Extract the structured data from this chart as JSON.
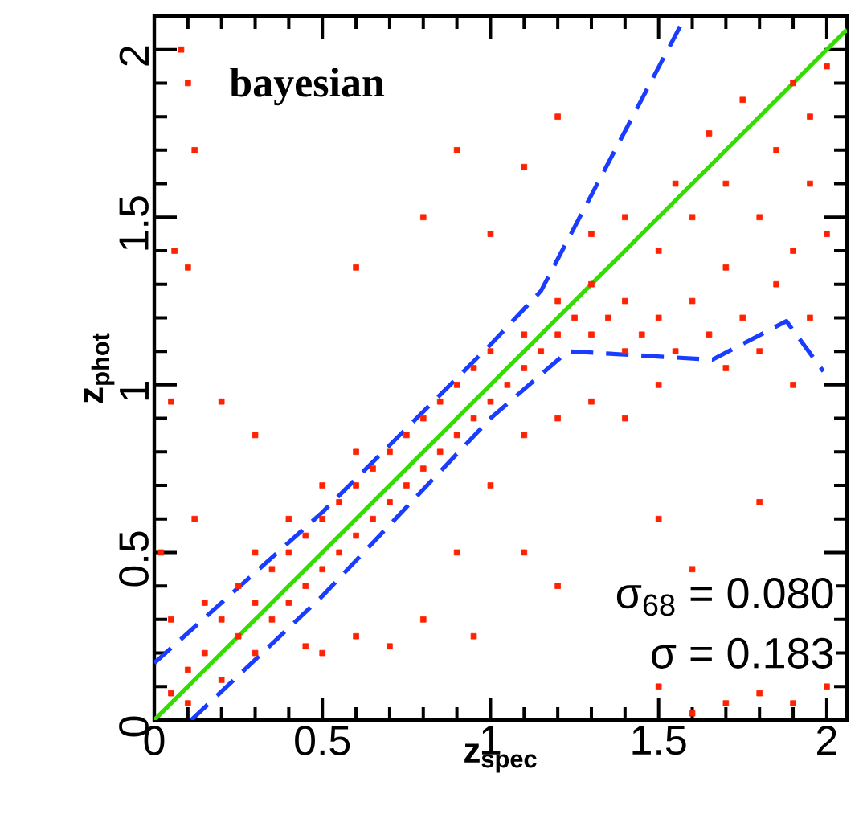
{
  "chart_data": {
    "type": "scatter",
    "xlabel": "z$_{spec}$",
    "ylabel": "z$_{phot}$",
    "annotations": [
      "bayesian",
      "σ$_{68}$ =  0.080",
      "σ    =  0.183"
    ],
    "xlim": [
      0,
      2.06
    ],
    "ylim": [
      0,
      2.1
    ],
    "xticks": [
      0,
      {
        "value": 0.1,
        "label": null
      },
      {
        "value": 0.2,
        "label": null
      },
      {
        "value": 0.3,
        "label": null
      },
      {
        "value": 0.4,
        "label": null
      },
      0.5,
      {
        "value": 0.6,
        "label": null
      },
      {
        "value": 0.7,
        "label": null
      },
      {
        "value": 0.8,
        "label": null
      },
      {
        "value": 0.9,
        "label": null
      },
      1,
      {
        "value": 1.1,
        "label": null
      },
      {
        "value": 1.2,
        "label": null
      },
      {
        "value": 1.3,
        "label": null
      },
      {
        "value": 1.4,
        "label": null
      },
      1.5,
      {
        "value": 1.6,
        "label": null
      },
      {
        "value": 1.7,
        "label": null
      },
      {
        "value": 1.8,
        "label": null
      },
      {
        "value": 1.9,
        "label": null
      },
      2
    ],
    "yticks": [
      0,
      {
        "value": 0.1,
        "label": null
      },
      {
        "value": 0.2,
        "label": null
      },
      {
        "value": 0.3,
        "label": null
      },
      {
        "value": 0.4,
        "label": null
      },
      0.5,
      {
        "value": 0.6,
        "label": null
      },
      {
        "value": 0.7,
        "label": null
      },
      {
        "value": 0.8,
        "label": null
      },
      {
        "value": 0.9,
        "label": null
      },
      1,
      {
        "value": 1.1,
        "label": null
      },
      {
        "value": 1.2,
        "label": null
      },
      {
        "value": 1.3,
        "label": null
      },
      {
        "value": 1.4,
        "label": null
      },
      1.5,
      {
        "value": 1.6,
        "label": null
      },
      {
        "value": 1.7,
        "label": null
      },
      {
        "value": 1.8,
        "label": null
      },
      {
        "value": 1.9,
        "label": null
      },
      2
    ],
    "series": [
      {
        "color": "#ff2200",
        "marker": "square",
        "x": [
          0.05,
          0.1,
          0.1,
          0.15,
          0.2,
          0.2,
          0.25,
          0.25,
          0.3,
          0.3,
          0.3,
          0.35,
          0.35,
          0.4,
          0.4,
          0.4,
          0.45,
          0.45,
          0.5,
          0.5,
          0.5,
          0.55,
          0.55,
          0.6,
          0.6,
          0.6,
          0.65,
          0.65,
          0.7,
          0.7,
          0.75,
          0.75,
          0.8,
          0.8,
          0.85,
          0.85,
          0.9,
          0.9,
          0.95,
          0.95,
          1.0,
          1.0,
          1.05,
          1.1,
          1.1,
          1.15,
          1.2,
          1.2,
          1.25,
          1.3,
          1.3,
          1.35,
          1.4,
          1.4,
          1.45,
          1.5,
          1.5,
          1.55,
          1.6,
          1.65,
          1.7,
          1.75,
          1.8,
          1.85,
          1.9,
          1.95,
          1.3,
          1.4,
          1.5,
          1.55,
          1.6,
          1.65,
          1.7,
          1.75,
          1.8,
          1.85,
          1.9,
          1.95,
          1.95,
          2.0,
          2.0,
          1.9,
          1.7,
          0.08,
          0.1,
          0.12,
          0.1,
          0.06,
          0.05,
          0.2,
          0.3,
          0.6,
          0.8,
          0.9,
          1.0,
          1.1,
          1.2,
          0.45,
          0.5,
          0.6,
          0.7,
          0.8,
          0.9,
          1.0,
          1.1,
          1.2,
          1.3,
          1.4,
          1.1,
          0.95,
          1.2,
          1.5,
          1.6,
          1.8,
          1.7,
          1.8,
          1.9,
          1.6,
          2.0,
          1.5,
          0.15,
          0.05,
          0.02,
          0.12
        ],
        "values": [
          0.08,
          0.05,
          0.15,
          0.2,
          0.12,
          0.3,
          0.25,
          0.4,
          0.2,
          0.35,
          0.5,
          0.3,
          0.45,
          0.35,
          0.5,
          0.6,
          0.4,
          0.55,
          0.45,
          0.6,
          0.7,
          0.5,
          0.65,
          0.55,
          0.7,
          0.8,
          0.6,
          0.75,
          0.65,
          0.8,
          0.7,
          0.85,
          0.75,
          0.9,
          0.8,
          0.95,
          0.85,
          1.0,
          0.9,
          1.05,
          0.95,
          1.1,
          1.0,
          1.05,
          1.15,
          1.1,
          1.15,
          1.25,
          1.2,
          1.15,
          1.3,
          1.2,
          1.1,
          1.25,
          1.15,
          1.2,
          1.0,
          1.1,
          1.25,
          1.15,
          1.05,
          1.2,
          1.1,
          1.3,
          1.0,
          1.2,
          1.45,
          1.5,
          1.4,
          1.6,
          1.5,
          1.75,
          1.6,
          1.85,
          1.5,
          1.7,
          1.9,
          1.6,
          1.8,
          1.95,
          1.45,
          1.4,
          1.35,
          2.0,
          1.9,
          1.7,
          1.35,
          1.4,
          0.95,
          0.95,
          0.85,
          1.35,
          1.5,
          1.7,
          1.45,
          1.65,
          1.8,
          0.22,
          0.2,
          0.25,
          0.22,
          0.3,
          0.5,
          0.7,
          0.85,
          0.9,
          0.95,
          0.9,
          0.5,
          0.25,
          0.4,
          0.6,
          0.45,
          0.65,
          0.05,
          0.08,
          0.05,
          0.02,
          0.1,
          0.1,
          0.35,
          0.3,
          0.5,
          0.6
        ]
      },
      {
        "type": "line",
        "color": "#33dd00",
        "line_style": "solid",
        "x": [
          0,
          2.06
        ],
        "values": [
          0,
          2.06
        ]
      },
      {
        "type": "line",
        "color": "#1a3cff",
        "line_style": "dashed",
        "x": [
          0,
          0.5,
          1.0,
          1.15,
          1.58
        ],
        "values": [
          0.17,
          0.62,
          1.12,
          1.28,
          2.1
        ]
      },
      {
        "type": "line",
        "color": "#1a3cff",
        "line_style": "dashed",
        "x": [
          0.11,
          0.5,
          1.0,
          1.23,
          1.66,
          1.88,
          1.99
        ],
        "values": [
          0,
          0.37,
          0.9,
          1.1,
          1.075,
          1.19,
          1.04
        ]
      }
    ]
  }
}
